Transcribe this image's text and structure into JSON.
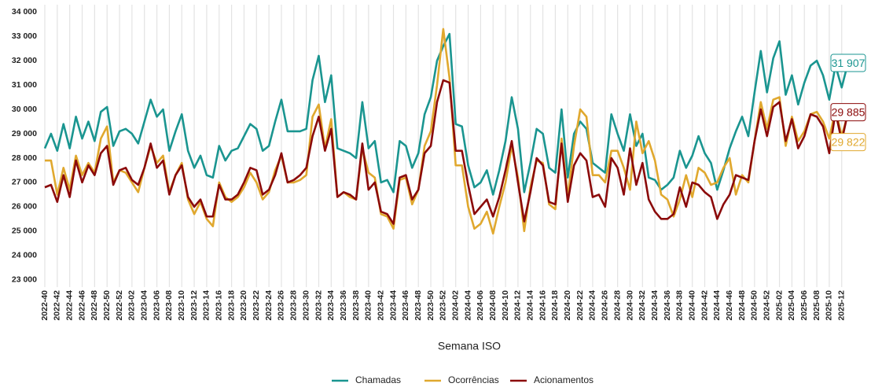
{
  "chart_data": {
    "type": "line",
    "x_label": "Semana ISO",
    "categories": [
      "2022-40",
      null,
      "2022-42",
      null,
      "2022-44",
      null,
      "2022-46",
      null,
      "2022-48",
      null,
      "2022-50",
      null,
      "2022-52",
      null,
      "2023-02",
      null,
      "2023-04",
      null,
      "2023-06",
      null,
      "2023-08",
      null,
      "2023-10",
      null,
      "2023-12",
      null,
      "2023-14",
      null,
      "2023-16",
      null,
      "2023-18",
      null,
      "2023-20",
      null,
      "2023-22",
      null,
      "2023-24",
      null,
      "2023-26",
      null,
      "2023-28",
      null,
      "2023-30",
      null,
      "2023-32",
      null,
      "2023-34",
      null,
      "2023-36",
      null,
      "2023-38",
      null,
      "2023-40",
      null,
      "2023-42",
      null,
      "2023-44",
      null,
      "2023-46",
      null,
      "2023-48",
      null,
      "2023-50",
      null,
      "2023-52",
      null,
      "2024-02",
      null,
      "2024-04",
      null,
      "2024-06",
      null,
      "2024-08",
      null,
      "2024-10",
      null,
      "2024-12",
      null,
      "2024-14",
      null,
      "2024-16",
      null,
      "2024-18",
      null,
      "2024-20",
      null,
      "2024-22",
      null,
      "2024-24",
      null,
      "2024-26",
      null,
      "2024-28",
      null,
      "2024-30",
      null,
      "2024-32",
      null,
      "2024-34",
      null,
      "2024-36",
      null,
      "2024-38",
      null,
      "2024-40",
      null,
      "2024-42",
      null,
      "2024-44",
      null,
      "2024-46",
      null,
      "2024-48",
      null,
      "2024-50",
      null,
      "2024-52",
      null,
      "2025-02",
      null,
      "2025-04",
      null,
      "2025-06",
      null,
      "2025-08",
      null,
      "2025-10",
      null,
      "2025-12",
      null
    ],
    "series": [
      {
        "name": "Chamadas",
        "color": "#1a9590",
        "values": [
          28400,
          29000,
          28300,
          29400,
          28400,
          29700,
          28800,
          29500,
          28700,
          29900,
          30100,
          28500,
          29100,
          29200,
          29000,
          28600,
          29500,
          30400,
          29700,
          30000,
          28300,
          29100,
          29800,
          28300,
          27600,
          28100,
          27300,
          27200,
          28500,
          27900,
          28300,
          28400,
          28900,
          29400,
          29200,
          28300,
          28500,
          29500,
          30400,
          29100,
          29100,
          29100,
          29200,
          31200,
          32200,
          30300,
          31400,
          28400,
          28300,
          28200,
          28000,
          30300,
          28400,
          28700,
          27000,
          27100,
          26600,
          28700,
          28500,
          27600,
          28200,
          29800,
          30500,
          32000,
          32600,
          33100,
          29400,
          29300,
          27700,
          26800,
          27000,
          27500,
          26500,
          27500,
          28700,
          30500,
          29200,
          26600,
          27800,
          29200,
          29000,
          27600,
          27400,
          30000,
          27200,
          29000,
          29500,
          29200,
          27800,
          27600,
          27400,
          29800,
          29000,
          28300,
          29800,
          28500,
          29000,
          27200,
          27100,
          26700,
          26900,
          27200,
          28300,
          27600,
          28100,
          28900,
          28200,
          27800,
          26700,
          27500,
          28400,
          29100,
          29700,
          28900,
          30700,
          32400,
          30700,
          32100,
          32800,
          30600,
          31400,
          30200,
          31100,
          31800,
          32000,
          31400,
          30400,
          31800,
          30900,
          31907
        ],
        "value_labels": [
          null,
          null,
          null,
          null,
          null,
          null,
          null,
          null,
          null,
          null,
          null,
          null,
          null,
          null,
          null,
          null,
          null,
          null,
          null,
          null,
          null,
          null,
          null,
          null,
          null,
          null,
          null,
          null,
          null,
          null,
          null,
          null,
          null,
          null,
          null,
          null,
          null,
          null,
          null,
          null,
          null,
          null,
          null,
          null,
          null,
          null,
          null,
          null,
          null,
          null,
          null,
          null,
          null,
          null,
          null,
          null,
          null,
          null,
          null,
          null,
          null,
          null,
          null,
          null,
          null,
          null,
          null,
          null,
          null,
          null,
          null,
          null,
          null,
          null,
          null,
          null,
          null,
          null,
          null,
          null,
          null,
          null,
          null,
          null,
          null,
          null,
          null,
          null,
          null,
          null,
          null,
          null,
          null,
          null,
          null,
          null,
          null,
          null,
          null,
          null,
          null,
          null,
          null,
          null,
          null,
          null,
          null,
          null,
          null,
          null,
          null,
          null,
          null,
          null,
          null,
          null,
          null,
          null,
          null,
          null,
          null,
          null,
          null,
          null,
          null,
          null,
          null,
          null,
          null,
          "31 907"
        ]
      },
      {
        "name": "Ocorrências",
        "color": "#e0a82e",
        "values": [
          27900,
          27900,
          26500,
          27600,
          26700,
          28100,
          27300,
          27800,
          27400,
          28800,
          29300,
          27000,
          27500,
          27400,
          27000,
          26600,
          27600,
          28500,
          27800,
          28100,
          26600,
          27300,
          27800,
          26300,
          25700,
          26200,
          25500,
          25200,
          27000,
          26400,
          26200,
          26400,
          26800,
          27400,
          27000,
          26300,
          26600,
          27500,
          28100,
          27000,
          27000,
          27100,
          27300,
          29700,
          30200,
          28400,
          29600,
          26400,
          26600,
          26400,
          26300,
          28400,
          27400,
          27200,
          25700,
          25600,
          25100,
          27100,
          27200,
          26100,
          26700,
          28500,
          29100,
          31000,
          33300,
          31300,
          27700,
          27700,
          26000,
          25100,
          25300,
          25800,
          24900,
          26000,
          27000,
          28500,
          27200,
          25000,
          26800,
          27900,
          27800,
          26100,
          25900,
          28800,
          26400,
          28500,
          30000,
          29700,
          27300,
          27300,
          27000,
          28300,
          28300,
          27600,
          26700,
          29500,
          28200,
          28700,
          27900,
          26500,
          26300,
          25600,
          26300,
          27300,
          26400,
          27600,
          27400,
          26900,
          27000,
          27600,
          28000,
          26500,
          27300,
          27000,
          28700,
          30300,
          29200,
          30400,
          30500,
          28500,
          29700,
          28700,
          29100,
          29800,
          29900,
          29500,
          28800,
          30000,
          28900,
          29822
        ],
        "value_labels": [
          null,
          null,
          null,
          null,
          null,
          null,
          null,
          null,
          null,
          null,
          null,
          null,
          null,
          null,
          null,
          null,
          null,
          null,
          null,
          null,
          null,
          null,
          null,
          null,
          null,
          null,
          null,
          null,
          null,
          null,
          null,
          null,
          null,
          null,
          null,
          null,
          null,
          null,
          null,
          null,
          null,
          null,
          null,
          null,
          null,
          null,
          null,
          null,
          null,
          null,
          null,
          null,
          null,
          null,
          null,
          null,
          null,
          null,
          null,
          null,
          null,
          null,
          null,
          null,
          null,
          null,
          null,
          null,
          null,
          null,
          null,
          null,
          null,
          null,
          null,
          null,
          null,
          null,
          null,
          null,
          null,
          null,
          null,
          null,
          null,
          null,
          null,
          null,
          null,
          null,
          null,
          null,
          null,
          null,
          null,
          null,
          null,
          null,
          null,
          null,
          null,
          null,
          null,
          null,
          null,
          null,
          null,
          null,
          null,
          null,
          null,
          null,
          null,
          null,
          null,
          null,
          null,
          null,
          null,
          null,
          null,
          null,
          null,
          null,
          null,
          null,
          null,
          null,
          null,
          "29 822"
        ]
      },
      {
        "name": "Acionamentos",
        "color": "#8b0a0a",
        "values": [
          26800,
          26900,
          26200,
          27300,
          26400,
          27900,
          27000,
          27700,
          27300,
          28200,
          28500,
          26900,
          27500,
          27600,
          27100,
          26900,
          27600,
          28600,
          27600,
          27900,
          26500,
          27300,
          27700,
          26400,
          26000,
          26300,
          25600,
          25600,
          26900,
          26300,
          26300,
          26500,
          27000,
          27600,
          27500,
          26500,
          26700,
          27300,
          28200,
          27000,
          27100,
          27300,
          27600,
          28900,
          29700,
          28300,
          29200,
          26400,
          26600,
          26500,
          26300,
          28600,
          26700,
          27000,
          25800,
          25700,
          25300,
          27200,
          27300,
          26300,
          26700,
          28200,
          28500,
          30300,
          31200,
          31100,
          28300,
          28300,
          26900,
          25700,
          26000,
          26300,
          25600,
          26400,
          27500,
          28700,
          27000,
          25400,
          26600,
          28000,
          27700,
          26200,
          26100,
          28600,
          26200,
          27700,
          28200,
          27900,
          26400,
          26500,
          26000,
          28000,
          27600,
          26500,
          28400,
          26900,
          27800,
          26300,
          25800,
          25500,
          25500,
          25700,
          26800,
          26000,
          27000,
          26900,
          26600,
          26400,
          25500,
          26100,
          26500,
          27300,
          27200,
          27100,
          28700,
          30000,
          28900,
          30100,
          30300,
          28700,
          29600,
          28400,
          28900,
          29800,
          29700,
          29300,
          28200,
          29900,
          28700,
          29885
        ],
        "value_labels": [
          null,
          null,
          null,
          null,
          null,
          null,
          null,
          null,
          null,
          null,
          null,
          null,
          null,
          null,
          null,
          null,
          null,
          null,
          null,
          null,
          null,
          null,
          null,
          null,
          null,
          null,
          null,
          null,
          null,
          null,
          null,
          null,
          null,
          null,
          null,
          null,
          null,
          null,
          null,
          null,
          null,
          null,
          null,
          null,
          null,
          null,
          null,
          null,
          null,
          null,
          null,
          null,
          null,
          null,
          null,
          null,
          null,
          null,
          null,
          null,
          null,
          null,
          null,
          null,
          null,
          null,
          null,
          null,
          null,
          null,
          null,
          null,
          null,
          null,
          null,
          null,
          null,
          null,
          null,
          null,
          null,
          null,
          null,
          null,
          null,
          null,
          null,
          null,
          null,
          null,
          null,
          null,
          null,
          null,
          null,
          null,
          null,
          null,
          null,
          null,
          null,
          null,
          null,
          null,
          null,
          null,
          null,
          null,
          null,
          null,
          null,
          null,
          null,
          null,
          null,
          null,
          null,
          null,
          null,
          null,
          null,
          null,
          null,
          null,
          null,
          null,
          null,
          null,
          null,
          "29 885"
        ]
      }
    ],
    "ylim": [
      22700,
      34300
    ],
    "yticks": [
      {
        "value": 23000,
        "label": "23 000"
      },
      {
        "value": 24000,
        "label": "24 000"
      },
      {
        "value": 25000,
        "label": "25 000"
      },
      {
        "value": 26000,
        "label": "26 000"
      },
      {
        "value": 27000,
        "label": "27 000"
      },
      {
        "value": 28000,
        "label": "28 000"
      },
      {
        "value": 29000,
        "label": "29 000"
      },
      {
        "value": 30000,
        "label": "30 000"
      },
      {
        "value": 31000,
        "label": "31 000"
      },
      {
        "value": 32000,
        "label": "32 000"
      },
      {
        "value": 33000,
        "label": "33 000"
      },
      {
        "value": 34000,
        "label": "34 000"
      }
    ],
    "grid": "x",
    "legend": "bottom"
  }
}
